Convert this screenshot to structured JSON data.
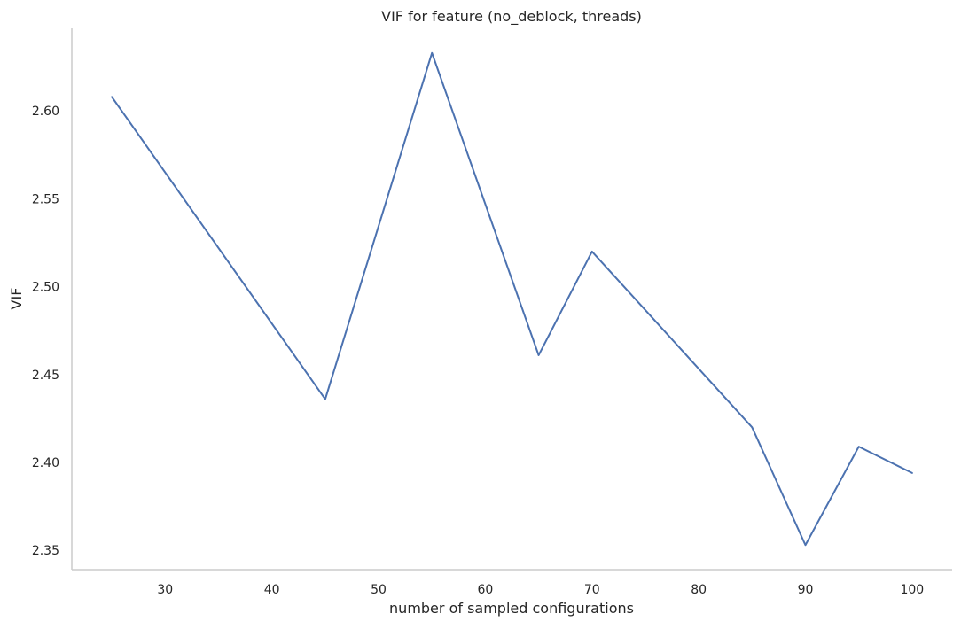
{
  "chart_data": {
    "type": "line",
    "title": "VIF for feature (no_deblock, threads)",
    "xlabel": "number of sampled configurations",
    "ylabel": "VIF",
    "x": [
      25,
      45,
      55,
      65,
      70,
      85,
      90,
      95,
      100
    ],
    "series": [
      {
        "values": [
          2.608,
          2.436,
          2.633,
          2.461,
          2.52,
          2.42,
          2.353,
          2.409,
          2.394
        ],
        "color": "#4c72b0"
      }
    ],
    "xlim": [
      21.25,
      103.75
    ],
    "ylim": [
      2.339,
      2.647
    ],
    "xticks": [
      30,
      40,
      50,
      60,
      70,
      80,
      90,
      100
    ],
    "xtick_labels": [
      "30",
      "40",
      "50",
      "60",
      "70",
      "80",
      "90",
      "100"
    ],
    "yticks": [
      2.35,
      2.4,
      2.45,
      2.5,
      2.55,
      2.6
    ],
    "ytick_labels": [
      "2.35",
      "2.40",
      "2.45",
      "2.50",
      "2.55",
      "2.60"
    ],
    "grid": false,
    "legend": false,
    "axis_color": "#cccccc"
  }
}
